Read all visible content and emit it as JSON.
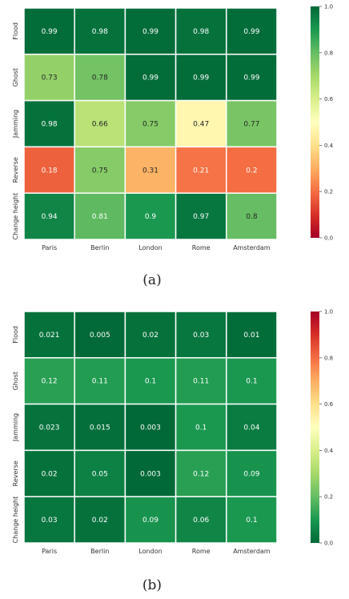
{
  "chart_data": [
    {
      "type": "heatmap",
      "caption": "(a)",
      "rows": [
        "Flood",
        "Ghost",
        "Jamming",
        "Reverse",
        "Change height"
      ],
      "columns": [
        "Paris",
        "Berlin",
        "London",
        "Rome",
        "Amsterdam"
      ],
      "values": [
        [
          "0.99",
          "0.98",
          "0.99",
          "0.98",
          "0.99"
        ],
        [
          "0.73",
          "0.78",
          "0.99",
          "0.99",
          "0.99"
        ],
        [
          "0.98",
          "0.66",
          "0.75",
          "0.47",
          "0.77"
        ],
        [
          "0.18",
          "0.75",
          "0.31",
          "0.21",
          "0.2"
        ],
        [
          "0.94",
          "0.81",
          "0.9",
          "0.97",
          "0.8"
        ]
      ],
      "colormap": "RdYlGn",
      "colorbar_range": [
        0,
        1
      ],
      "colorbar_ticks": [
        "0.0",
        "0.2",
        "0.4",
        "0.6",
        "0.8",
        "1.0"
      ]
    },
    {
      "type": "heatmap",
      "caption": "(b)",
      "rows": [
        "Flood",
        "Ghost",
        "Jamming",
        "Reverse",
        "Change height"
      ],
      "columns": [
        "Paris",
        "Berlin",
        "London",
        "Rome",
        "Amsterdam"
      ],
      "values": [
        [
          "0.021",
          "0.005",
          "0.02",
          "0.03",
          "0.01"
        ],
        [
          "0.12",
          "0.11",
          "0.1",
          "0.11",
          "0.1"
        ],
        [
          "0.023",
          "0.015",
          "0.003",
          "0.1",
          "0.04"
        ],
        [
          "0.02",
          "0.05",
          "0.003",
          "0.12",
          "0.09"
        ],
        [
          "0.03",
          "0.02",
          "0.09",
          "0.06",
          "0.1"
        ]
      ],
      "colormap": "RdYlGn_r",
      "colorbar_range": [
        0,
        1
      ],
      "colorbar_ticks": [
        "0.0",
        "0.2",
        "0.4",
        "0.6",
        "0.8",
        "1.0"
      ]
    }
  ]
}
